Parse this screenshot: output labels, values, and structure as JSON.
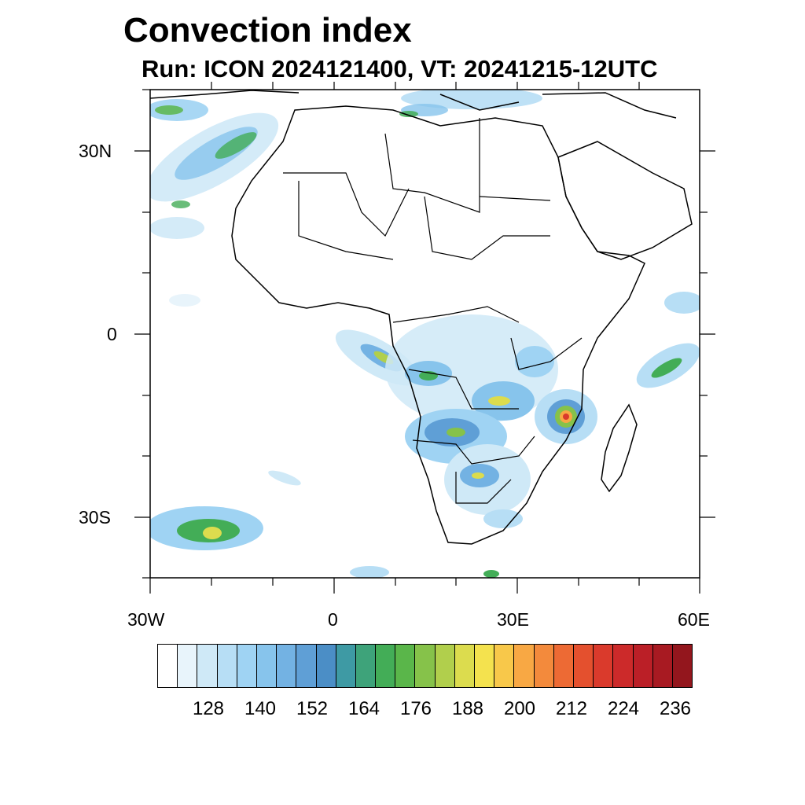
{
  "title": "Convection index",
  "subtitle": "Run: ICON 2024121400,  VT: 20241215-12UTC",
  "axes": {
    "lat_labels": [
      "30N",
      "0",
      "30S"
    ],
    "lon_labels": [
      "30W",
      "0",
      "30E",
      "60E"
    ]
  },
  "colorbar": {
    "labels": [
      "128",
      "140",
      "152",
      "164",
      "176",
      "188",
      "200",
      "212",
      "224",
      "236"
    ],
    "colors": [
      "#ffffff",
      "#e8f4fb",
      "#cfe9f7",
      "#b7def5",
      "#9fd3f3",
      "#87c4ec",
      "#73b2e3",
      "#5f9fd6",
      "#4b8ec6",
      "#3e9aa4",
      "#3ea37a",
      "#43ad57",
      "#5ab64a",
      "#86c24a",
      "#b1cf4c",
      "#dcdc4e",
      "#f4e24e",
      "#f8c84a",
      "#f8a844",
      "#f38a3c",
      "#ed6a34",
      "#e4502e",
      "#da3a2c",
      "#cc2a2a",
      "#bb1f27",
      "#a81a22",
      "#93161d"
    ]
  }
}
